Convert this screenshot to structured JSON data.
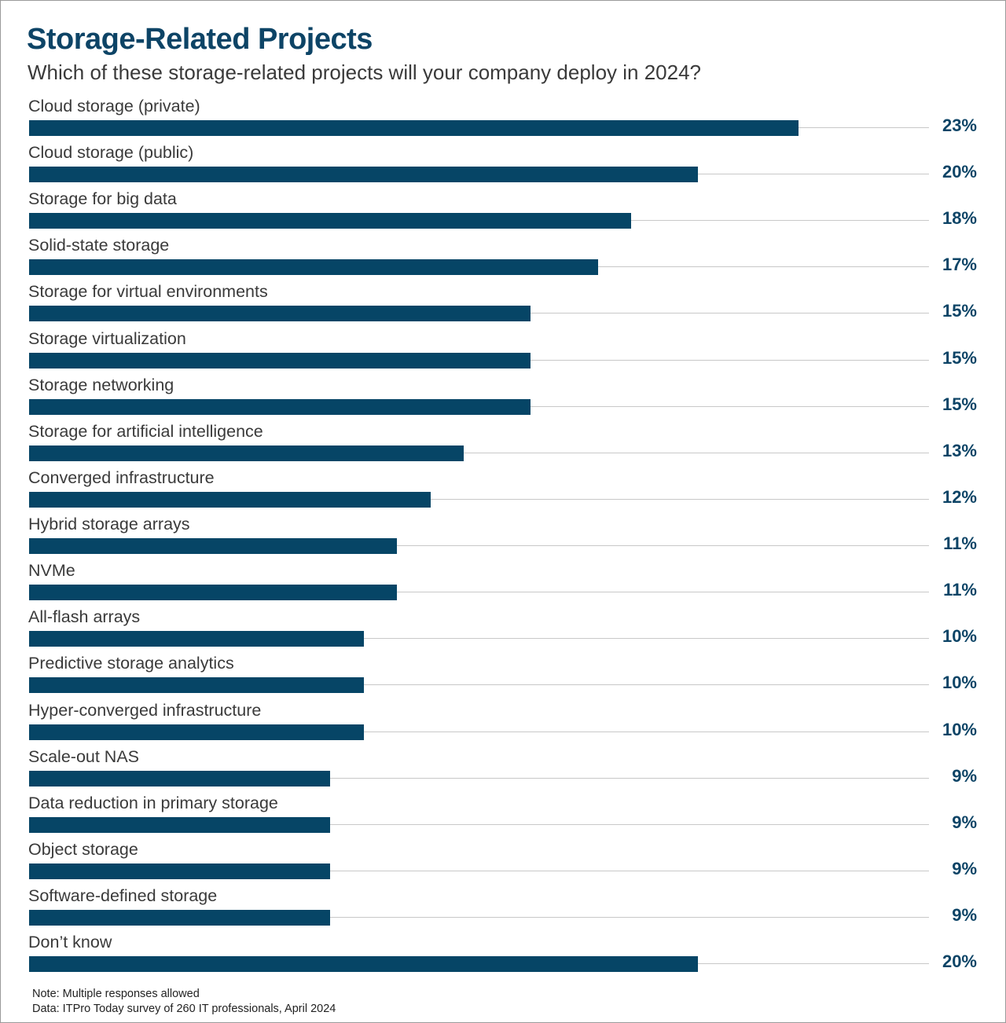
{
  "chart_data": {
    "type": "bar",
    "orientation": "horizontal",
    "title": "Storage-Related Projects",
    "subtitle": "Which of these storage-related projects will your company deploy in 2024?",
    "categories": [
      "Cloud storage (private)",
      "Cloud storage (public)",
      "Storage for big data",
      "Solid-state storage",
      "Storage for virtual environments",
      "Storage virtualization",
      "Storage networking",
      "Storage for artificial intelligence",
      "Converged infrastructure",
      "Hybrid storage arrays",
      "NVMe",
      "All-flash arrays",
      "Predictive storage analytics",
      "Hyper-converged infrastructure",
      "Scale-out NAS",
      "Data reduction in primary storage",
      "Object storage",
      "Software-defined storage",
      "Don’t know"
    ],
    "values": [
      23,
      20,
      18,
      17,
      15,
      15,
      15,
      13,
      12,
      11,
      11,
      10,
      10,
      10,
      9,
      9,
      9,
      9,
      20
    ],
    "value_labels": [
      "23%",
      "20%",
      "18%",
      "17%",
      "15%",
      "15%",
      "15%",
      "13%",
      "12%",
      "11%",
      "11%",
      "10%",
      "10%",
      "10%",
      "9%",
      "9%",
      "9%",
      "9%",
      "20%"
    ],
    "xlim": [
      0,
      27
    ],
    "grid": false,
    "bar_color": "#064566",
    "notes": [
      "Note: Multiple responses allowed",
      "Data: ITPro Today survey of 260 IT professionals, April 2024"
    ]
  }
}
